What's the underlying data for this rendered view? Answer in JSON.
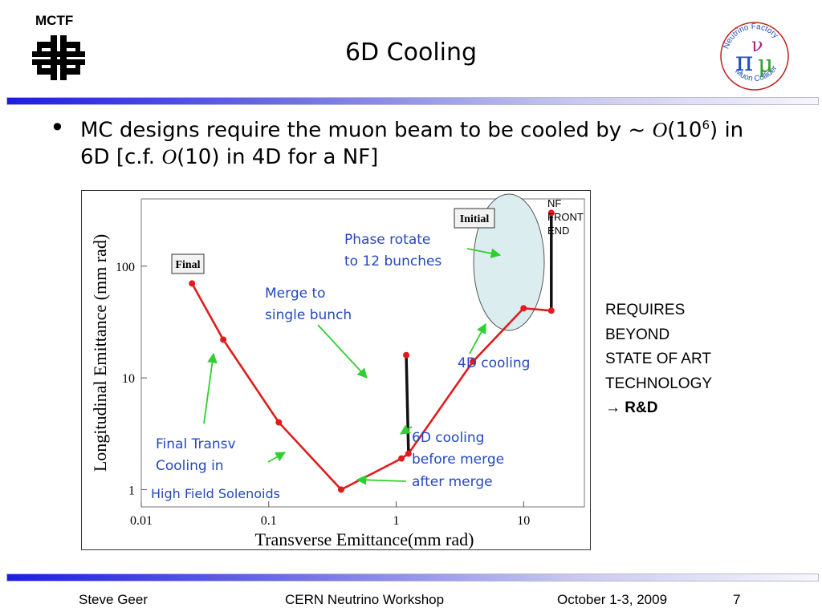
{
  "header": {
    "org_label": "MCTF",
    "title": "6D Cooling",
    "corner_logo": {
      "line1": "Neutrino Factory",
      "line2": "Muon Collider"
    }
  },
  "bullet": {
    "pre": "MC designs require the muon beam to be cooled by ~ ",
    "o1": "O",
    "a": "(10",
    "exp": "6",
    "b": ") in 6D [c.f. ",
    "o2": "O",
    "c": "(10) in 4D for a NF]"
  },
  "side_note": {
    "lines": [
      "REQUIRES",
      "BEYOND",
      "STATE OF ART",
      "TECHNOLOGY"
    ],
    "arrow": "→",
    "bold": "R&D"
  },
  "footer": {
    "author": "Steve Geer",
    "event": "CERN Neutrino Workshop",
    "date": "October 1-3, 2009",
    "page": "7"
  },
  "colors": {
    "trajectory": "#e01c1c",
    "annotation": "#2448c0",
    "pointer": "#2fcf2f",
    "nf_ellipse": "#dcedf0"
  },
  "chart_data": {
    "type": "line",
    "x_scale": "log",
    "y_scale": "log",
    "xlim": [
      0.01,
      30
    ],
    "ylim": [
      0.7,
      400
    ],
    "xlabel": "Transverse Emittance(mm rad)",
    "ylabel": "Longitudinal Emittance (mm rad)",
    "x_ticks": [
      {
        "value": 0.01,
        "label": "0.01"
      },
      {
        "value": 0.1,
        "label": "0.1"
      },
      {
        "value": 1,
        "label": "1"
      },
      {
        "value": 10,
        "label": "10"
      }
    ],
    "y_ticks": [
      {
        "value": 1,
        "label": "1"
      },
      {
        "value": 10,
        "label": "10"
      },
      {
        "value": 100,
        "label": "100"
      }
    ],
    "red_path": {
      "x": [
        0.025,
        0.044,
        0.12,
        0.37,
        1.1,
        1.25,
        4,
        10,
        16.5
      ],
      "y": [
        70,
        22,
        4,
        1,
        1.9,
        2.1,
        14,
        42,
        40
      ]
    },
    "black_segments": [
      {
        "x": [
          1.2,
          1.25
        ],
        "y": [
          16,
          2.1
        ]
      },
      {
        "x": [
          16.5,
          16.5
        ],
        "y": [
          300,
          40
        ]
      }
    ],
    "extra_points": {
      "x": [
        1.2,
        16.5
      ],
      "y": [
        16,
        300
      ]
    },
    "boxed_labels": [
      {
        "text": "Final",
        "x": 0.025,
        "y": 120
      },
      {
        "text": "Initial",
        "x": 12,
        "y": 270
      }
    ],
    "annotations": [
      {
        "lines": [
          "Phase rotate",
          "to 12 bunches"
        ]
      },
      {
        "lines": [
          "Merge to",
          "single bunch"
        ]
      },
      {
        "lines": [
          "4D cooling"
        ]
      },
      {
        "lines": [
          "6D cooling",
          "before merge",
          "after merge"
        ]
      },
      {
        "lines": [
          "Final Transv",
          "Cooling in",
          "High Field Solenoids"
        ]
      }
    ],
    "nf_label": [
      "NF",
      "FRONT",
      "END"
    ]
  }
}
